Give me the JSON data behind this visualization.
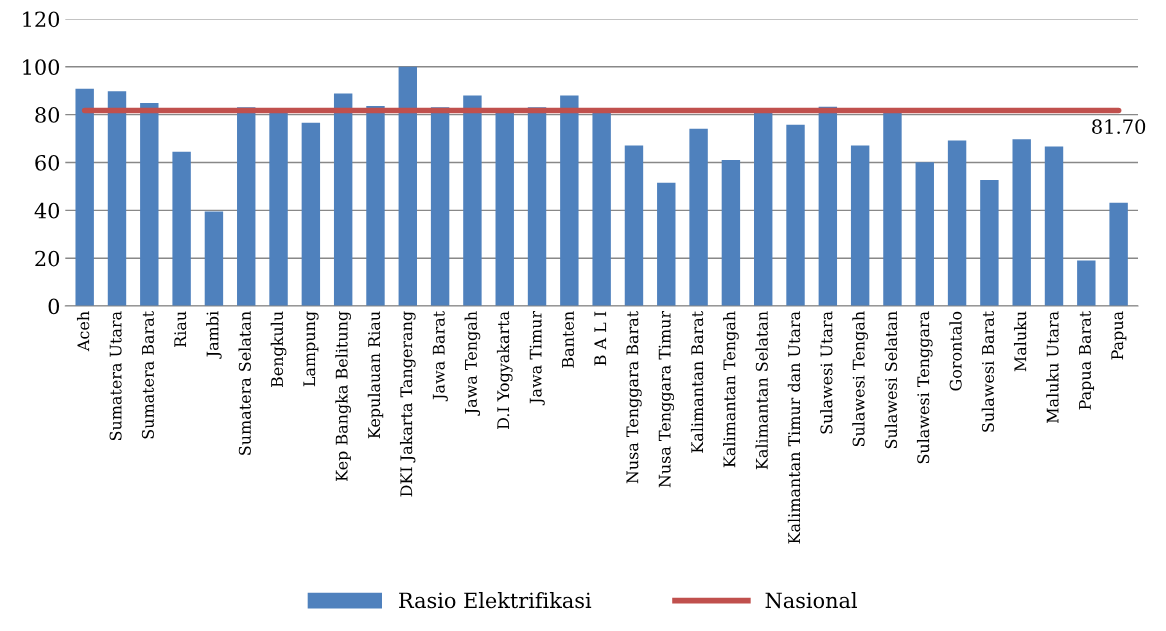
{
  "chart_data": {
    "type": "bar",
    "categories": [
      "Aceh",
      "Sumatera Utara",
      "Sumatera Barat",
      "Riau",
      "Jambi",
      "Sumatera Selatan",
      "Bengkulu",
      "Lampung",
      "Kep Bangka Belitung",
      "Kepulauan Riau",
      "DKI Jakarta Tangerang",
      "Jawa Barat",
      "Jawa Tengah",
      "D.I Yogyakarta",
      "Jawa Timur",
      "Banten",
      "B A L I",
      "Nusa Tenggara Barat",
      "Nusa Tenggara Timur",
      "Kalimantan Barat",
      "Kalimantan Tengah",
      "Kalimantan Selatan",
      "Kalimantan Timur dan Utara",
      "Sulawesi Utara",
      "Sulawesi Tengah",
      "Sulawesi Selatan",
      "Sulawesi Tenggara",
      "Gorontalo",
      "Sulawesi Barat",
      "Maluku",
      "Maluku Utara",
      "Papua Barat",
      "Papua"
    ],
    "series": [
      {
        "name": "Rasio Elektrifikasi",
        "color": "#4f81bd",
        "values": [
          90.8,
          89.8,
          84.9,
          64.5,
          39.5,
          83.1,
          81,
          76.6,
          88.8,
          83.6,
          100,
          83.1,
          88,
          81,
          83.1,
          88,
          81,
          67.1,
          51.5,
          74.1,
          61,
          81,
          75.8,
          83.3,
          67.1,
          81,
          60.1,
          69.2,
          52.7,
          69.7,
          66.7,
          19,
          43.2
        ]
      },
      {
        "name": "Nasional",
        "type": "line",
        "color": "#c0504d",
        "values": [
          81.7,
          81.7,
          81.7,
          81.7,
          81.7,
          81.7,
          81.7,
          81.7,
          81.7,
          81.7,
          81.7,
          81.7,
          81.7,
          81.7,
          81.7,
          81.7,
          81.7,
          81.7,
          81.7,
          81.7,
          81.7,
          81.7,
          81.7,
          81.7,
          81.7,
          81.7,
          81.7,
          81.7,
          81.7,
          81.7,
          81.7,
          81.7,
          81.7
        ],
        "value_labels": [
          null,
          null,
          null,
          null,
          null,
          null,
          null,
          null,
          null,
          null,
          null,
          null,
          null,
          null,
          null,
          null,
          null,
          null,
          null,
          null,
          null,
          null,
          null,
          null,
          null,
          null,
          null,
          null,
          null,
          null,
          null,
          null,
          "81.70"
        ]
      }
    ],
    "ylim": [
      0,
      120
    ],
    "yticks": [
      0,
      20,
      40,
      60,
      80,
      100,
      120
    ],
    "grid": "y",
    "legend": "bottom",
    "marker": "none"
  }
}
